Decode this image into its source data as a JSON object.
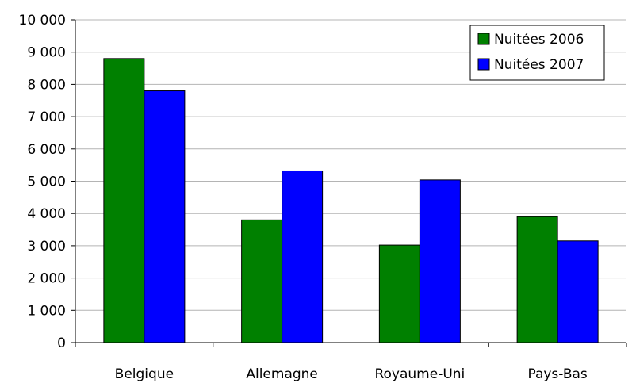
{
  "chart_data": {
    "type": "bar",
    "title": "",
    "xlabel": "",
    "ylabel": "",
    "categories": [
      "Belgique",
      "Allemagne",
      "Royaume-Uni",
      "Pays-Bas"
    ],
    "series": [
      {
        "name": "Nuitées 2006",
        "color": "#008000",
        "values": [
          8800,
          3800,
          3020,
          3900
        ]
      },
      {
        "name": "Nuitées 2007",
        "color": "#0000ff",
        "values": [
          7800,
          5320,
          5040,
          3150
        ]
      }
    ],
    "ylim": [
      0,
      10000
    ],
    "ytick_step": 1000,
    "yticks": [
      "0",
      "1 000",
      "2 000",
      "3 000",
      "4 000",
      "5 000",
      "6 000",
      "7 000",
      "8 000",
      "9 000",
      "10 000"
    ],
    "grid": true,
    "legend": "top-right"
  }
}
